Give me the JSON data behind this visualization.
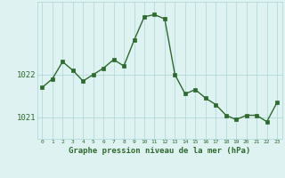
{
  "x": [
    0,
    1,
    2,
    3,
    4,
    5,
    6,
    7,
    8,
    9,
    10,
    11,
    12,
    13,
    14,
    15,
    16,
    17,
    18,
    19,
    20,
    21,
    22,
    23
  ],
  "y": [
    1021.7,
    1021.9,
    1022.3,
    1022.1,
    1021.85,
    1022.0,
    1022.15,
    1022.35,
    1022.2,
    1022.8,
    1023.35,
    1023.4,
    1023.3,
    1022.0,
    1021.55,
    1021.65,
    1021.45,
    1021.3,
    1021.05,
    1020.95,
    1021.05,
    1021.05,
    1020.9,
    1021.35
  ],
  "line_color": "#2d6a2d",
  "marker_color": "#2d6a2d",
  "bg_color": "#dff2f2",
  "grid_color": "#aad4d4",
  "text_color": "#2d6a2d",
  "xlabel": "Graphe pression niveau de la mer (hPa)",
  "ylim": [
    1020.5,
    1023.7
  ],
  "yticks": [
    1021,
    1022
  ],
  "xticks": [
    0,
    1,
    2,
    3,
    4,
    5,
    6,
    7,
    8,
    9,
    10,
    11,
    12,
    13,
    14,
    15,
    16,
    17,
    18,
    19,
    20,
    21,
    22,
    23
  ],
  "marker_size": 2.5,
  "line_width": 1.0
}
